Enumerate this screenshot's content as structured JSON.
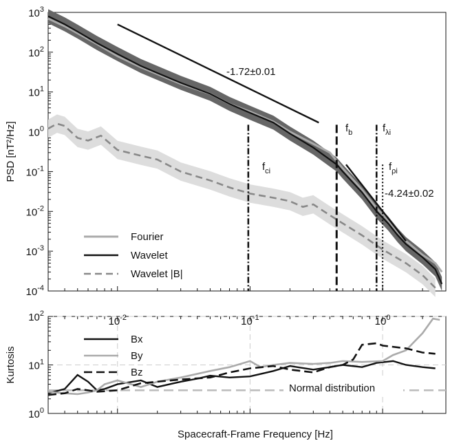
{
  "chart_data": [
    {
      "type": "line",
      "panel": "top",
      "xscale": "log",
      "yscale": "log",
      "xlim": [
        0.003,
        3.0
      ],
      "ylim": [
        0.0001,
        1000
      ],
      "ylabel": "PSD [nT²/Hz]",
      "yticks": [
        {
          "value": 0.0001,
          "base": "10",
          "exp": "-4"
        },
        {
          "value": 0.001,
          "base": "10",
          "exp": "-3"
        },
        {
          "value": 0.01,
          "base": "10",
          "exp": "-2"
        },
        {
          "value": 0.1,
          "base": "10",
          "exp": "-1"
        },
        {
          "value": 1,
          "base": "10",
          "exp": "0"
        },
        {
          "value": 10,
          "base": "10",
          "exp": "1"
        },
        {
          "value": 100,
          "base": "10",
          "exp": "2"
        },
        {
          "value": 1000,
          "base": "10",
          "exp": "3"
        }
      ],
      "legend": {
        "position": "bottom-left",
        "entries": [
          "Fourier",
          "Wavelet",
          "Wavelet |B|"
        ]
      },
      "series": [
        {
          "name": "Fourier",
          "color": "#aaaaaa",
          "x": [
            0.003,
            0.004,
            0.005,
            0.007,
            0.01,
            0.015,
            0.02,
            0.03,
            0.05,
            0.07,
            0.1,
            0.15,
            0.2,
            0.3,
            0.4,
            0.5,
            0.7,
            0.9,
            1.1,
            1.3,
            1.5,
            2.0,
            2.5,
            2.8
          ],
          "y": [
            700,
            450,
            300,
            160,
            80,
            42,
            28,
            16,
            9,
            5,
            3.2,
            1.8,
            1.0,
            0.5,
            0.3,
            0.12,
            0.035,
            0.012,
            0.006,
            0.003,
            0.0018,
            0.0008,
            0.0005,
            0.0003
          ]
        },
        {
          "name": "Wavelet",
          "color": "#111111",
          "x": [
            0.003,
            0.004,
            0.005,
            0.007,
            0.01,
            0.015,
            0.02,
            0.03,
            0.05,
            0.07,
            0.1,
            0.15,
            0.2,
            0.3,
            0.4,
            0.45,
            0.5,
            0.7,
            0.9,
            1.1,
            1.3,
            1.5,
            2.0,
            2.5,
            2.8
          ],
          "y": [
            800,
            500,
            330,
            170,
            90,
            45,
            30,
            17,
            9,
            5,
            3.0,
            1.7,
            0.9,
            0.4,
            0.2,
            0.15,
            0.1,
            0.03,
            0.01,
            0.005,
            0.0025,
            0.0015,
            0.0007,
            0.00035,
            0.00015
          ]
        },
        {
          "name": "Wavelet |B|",
          "color": "#888888",
          "dash": true,
          "x": [
            0.003,
            0.0035,
            0.004,
            0.005,
            0.006,
            0.0075,
            0.01,
            0.015,
            0.02,
            0.03,
            0.05,
            0.07,
            0.1,
            0.15,
            0.2,
            0.25,
            0.3,
            0.4,
            0.5,
            0.7,
            1.0,
            1.5,
            2.0,
            2.5
          ],
          "y": [
            1.2,
            1.6,
            1.4,
            0.7,
            0.6,
            0.8,
            0.35,
            0.25,
            0.2,
            0.1,
            0.06,
            0.04,
            0.028,
            0.022,
            0.018,
            0.013,
            0.015,
            0.008,
            0.005,
            0.0025,
            0.0011,
            0.0005,
            0.00025,
            0.00012
          ]
        }
      ],
      "fit_lines": [
        {
          "label": "-1.72±0.01",
          "x": [
            0.01,
            0.33
          ],
          "y": [
            500,
            1.7
          ]
        },
        {
          "label": "-4.24±0.02",
          "x": [
            0.53,
            1.5
          ],
          "y": [
            0.15,
            0.0018
          ]
        }
      ],
      "vertical_markers": [
        {
          "name": "f_ci",
          "base": "f",
          "sub": "ci",
          "x": 0.097,
          "style": "dashdot",
          "top": 1.5
        },
        {
          "name": "f_b",
          "base": "f",
          "sub": "b",
          "x": 0.45,
          "style": "dashed",
          "top": 1.5
        },
        {
          "name": "f_λi",
          "base": "f",
          "sub": "λi",
          "x": 0.9,
          "style": "dashdot",
          "top": 1.5
        },
        {
          "name": "f_ρi",
          "base": "f",
          "sub": "ρi",
          "x": 1.0,
          "style": "dotted",
          "top": 0.15
        }
      ]
    },
    {
      "type": "line",
      "panel": "bottom",
      "xscale": "log",
      "yscale": "log",
      "xlim": [
        0.003,
        3.0
      ],
      "ylim": [
        1,
        100
      ],
      "xlabel": "Spacecraft-Frame Frequency [Hz]",
      "ylabel": "Kurtosis",
      "xticks": [
        {
          "value": 0.01,
          "base": "10",
          "exp": "-2"
        },
        {
          "value": 0.1,
          "base": "10",
          "exp": "-1"
        },
        {
          "value": 1,
          "base": "10",
          "exp": "0"
        }
      ],
      "yticks": [
        {
          "value": 1,
          "base": "10",
          "exp": "0"
        },
        {
          "value": 10,
          "base": "10",
          "exp": "1"
        },
        {
          "value": 100,
          "base": "10",
          "exp": "2"
        }
      ],
      "grid": true,
      "legend": {
        "position": "top-left",
        "entries": [
          "Bx",
          "By",
          "Bz"
        ]
      },
      "series": [
        {
          "name": "Bx",
          "color": "#111111",
          "x": [
            0.003,
            0.004,
            0.005,
            0.006,
            0.007,
            0.008,
            0.01,
            0.015,
            0.02,
            0.03,
            0.04,
            0.05,
            0.07,
            0.1,
            0.15,
            0.2,
            0.3,
            0.4,
            0.5,
            0.7,
            0.9,
            1.2,
            1.5,
            2.0,
            2.5
          ],
          "y": [
            2.6,
            3.2,
            6.2,
            4.5,
            3.0,
            3.2,
            4.0,
            4.8,
            3.5,
            4.5,
            5.2,
            6.0,
            5.5,
            5.8,
            7.5,
            9.5,
            8.0,
            9.0,
            10.0,
            9.0,
            11.0,
            12.0,
            10.0,
            9.0,
            8.5
          ]
        },
        {
          "name": "By",
          "color": "#aaaaaa",
          "x": [
            0.003,
            0.004,
            0.005,
            0.006,
            0.007,
            0.008,
            0.01,
            0.015,
            0.02,
            0.03,
            0.05,
            0.07,
            0.1,
            0.12,
            0.15,
            0.2,
            0.3,
            0.4,
            0.5,
            0.7,
            1.0,
            1.2,
            1.5,
            2.0,
            2.4,
            2.7
          ],
          "y": [
            2.8,
            2.6,
            2.5,
            2.7,
            3.0,
            4.0,
            4.8,
            3.5,
            4.5,
            5.5,
            7.5,
            9.0,
            12.0,
            9.0,
            10.0,
            11.0,
            10.5,
            11.0,
            12.0,
            11.5,
            12.0,
            16.0,
            20.0,
            45.0,
            90.0,
            85.0
          ]
        },
        {
          "name": "Bz",
          "color": "#111111",
          "dash": true,
          "x": [
            0.003,
            0.004,
            0.005,
            0.006,
            0.007,
            0.01,
            0.015,
            0.02,
            0.03,
            0.05,
            0.07,
            0.1,
            0.15,
            0.2,
            0.3,
            0.4,
            0.5,
            0.6,
            0.7,
            0.9,
            1.0,
            1.5,
            2.0,
            2.5
          ],
          "y": [
            2.4,
            2.6,
            3.2,
            3.0,
            2.8,
            3.0,
            4.2,
            4.5,
            5.0,
            5.5,
            7.0,
            8.5,
            9.5,
            8.0,
            7.0,
            9.0,
            10.0,
            13.0,
            26.0,
            28.0,
            25.0,
            22.0,
            18.0,
            17.0
          ]
        }
      ],
      "reference_line": {
        "label": "Normal distribution",
        "y": 3,
        "color": "#bbbbbb",
        "dash": true
      }
    }
  ]
}
